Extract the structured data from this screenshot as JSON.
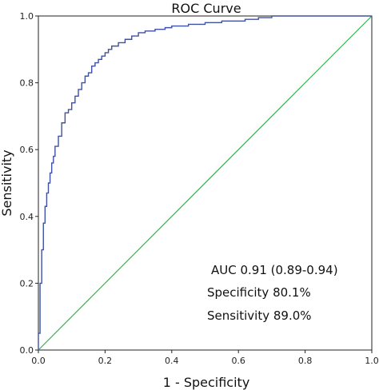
{
  "chart_data": {
    "type": "line",
    "title": "ROC Curve",
    "xlabel": "1 - Specificity",
    "ylabel": "Sensitivity",
    "xlim": [
      0,
      1
    ],
    "ylim": [
      0,
      1
    ],
    "xticks": [
      "0.0",
      "0.2",
      "0.4",
      "0.6",
      "0.8",
      "1.0"
    ],
    "yticks": [
      "0.0",
      "0.2",
      "0.4",
      "0.6",
      "0.8",
      "1.0"
    ],
    "grid": false,
    "legend": "none",
    "annotations": [
      "AUC 0.91 (0.89-0.94)",
      "Specificity 80.1%",
      "Sensitivity 89.0%"
    ],
    "colors": {
      "roc": "#3f51a3",
      "reference": "#2db34a"
    },
    "series": [
      {
        "x": [
          0,
          0,
          0.005,
          0.005,
          0.01,
          0.01,
          0.015,
          0.015,
          0.02,
          0.02,
          0.025,
          0.025,
          0.03,
          0.03,
          0.035,
          0.035,
          0.04,
          0.04,
          0.045,
          0.045,
          0.05,
          0.05,
          0.06,
          0.06,
          0.07,
          0.07,
          0.08,
          0.08,
          0.09,
          0.09,
          0.1,
          0.1,
          0.11,
          0.11,
          0.12,
          0.12,
          0.13,
          0.13,
          0.14,
          0.14,
          0.15,
          0.15,
          0.16,
          0.16,
          0.17,
          0.17,
          0.18,
          0.18,
          0.19,
          0.19,
          0.2,
          0.2,
          0.21,
          0.21,
          0.22,
          0.22,
          0.24,
          0.24,
          0.26,
          0.26,
          0.28,
          0.28,
          0.3,
          0.3,
          0.32,
          0.32,
          0.35,
          0.35,
          0.38,
          0.38,
          0.4,
          0.4,
          0.45,
          0.45,
          0.5,
          0.5,
          0.55,
          0.55,
          0.62,
          0.62,
          0.66,
          0.66,
          0.7,
          0.7,
          0.74,
          0.74,
          1.0
        ],
        "y": [
          0,
          0.05,
          0.05,
          0.2,
          0.2,
          0.3,
          0.3,
          0.38,
          0.38,
          0.43,
          0.43,
          0.47,
          0.47,
          0.5,
          0.5,
          0.53,
          0.53,
          0.56,
          0.56,
          0.58,
          0.58,
          0.61,
          0.61,
          0.64,
          0.64,
          0.68,
          0.68,
          0.71,
          0.71,
          0.72,
          0.72,
          0.74,
          0.74,
          0.76,
          0.76,
          0.78,
          0.78,
          0.8,
          0.8,
          0.82,
          0.82,
          0.83,
          0.83,
          0.85,
          0.85,
          0.86,
          0.86,
          0.87,
          0.87,
          0.88,
          0.88,
          0.89,
          0.89,
          0.9,
          0.9,
          0.91,
          0.91,
          0.92,
          0.92,
          0.93,
          0.93,
          0.94,
          0.94,
          0.95,
          0.95,
          0.955,
          0.955,
          0.96,
          0.96,
          0.965,
          0.965,
          0.97,
          0.97,
          0.975,
          0.975,
          0.98,
          0.98,
          0.985,
          0.985,
          0.99,
          0.99,
          0.995,
          0.995,
          1.0,
          1.0,
          1.0,
          1.0
        ]
      },
      {
        "x": [
          0,
          1
        ],
        "y": [
          0,
          1
        ]
      }
    ]
  }
}
